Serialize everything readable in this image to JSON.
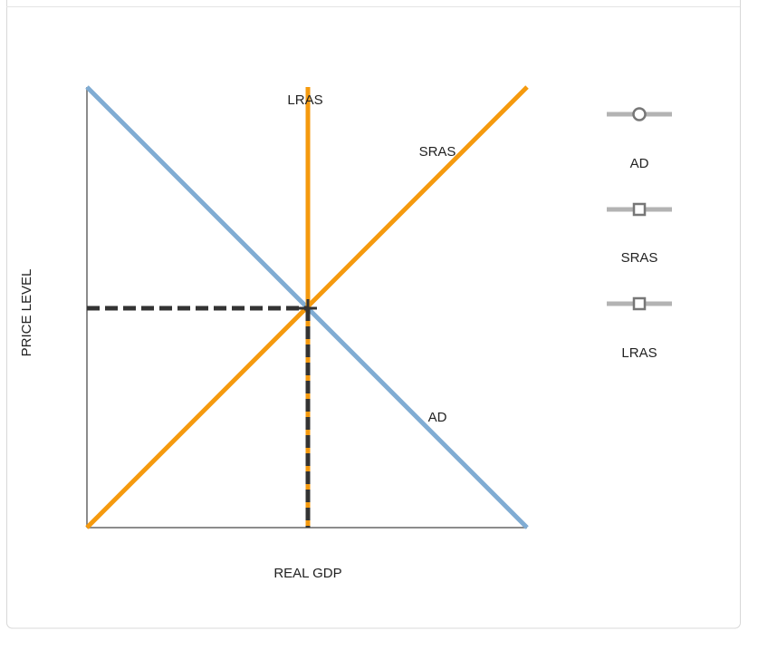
{
  "graph": {
    "x_label": "REAL GDP",
    "y_label": "PRICE LEVEL",
    "curve_labels": [
      "LRAS",
      "SRAS",
      "AD"
    ]
  },
  "tools": [
    "AD",
    "SRAS",
    "LRAS"
  ]
}
